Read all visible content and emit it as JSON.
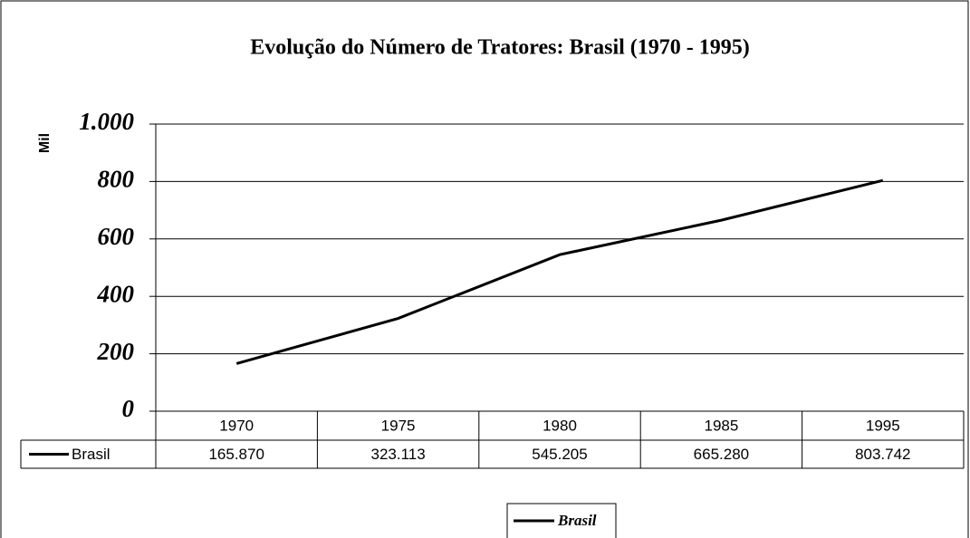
{
  "chart_data": {
    "type": "line",
    "title": "Evolução do Número de Tratores: Brasil (1970 - 1995)",
    "y_label": "Mil",
    "categories": [
      "1970",
      "1975",
      "1980",
      "1985",
      "1995"
    ],
    "series": [
      {
        "name": "Brasil",
        "color": "#000000",
        "values": [
          165.87,
          323.113,
          545.205,
          665.28,
          803.742
        ],
        "value_labels": [
          "165.870",
          "323.113",
          "545.205",
          "665.280",
          "803.742"
        ]
      }
    ],
    "ylim": [
      0,
      1000
    ],
    "yticks": [
      0,
      200,
      400,
      600,
      800,
      {
        "value": 1000,
        "label": "1.000"
      }
    ],
    "grid": true
  }
}
